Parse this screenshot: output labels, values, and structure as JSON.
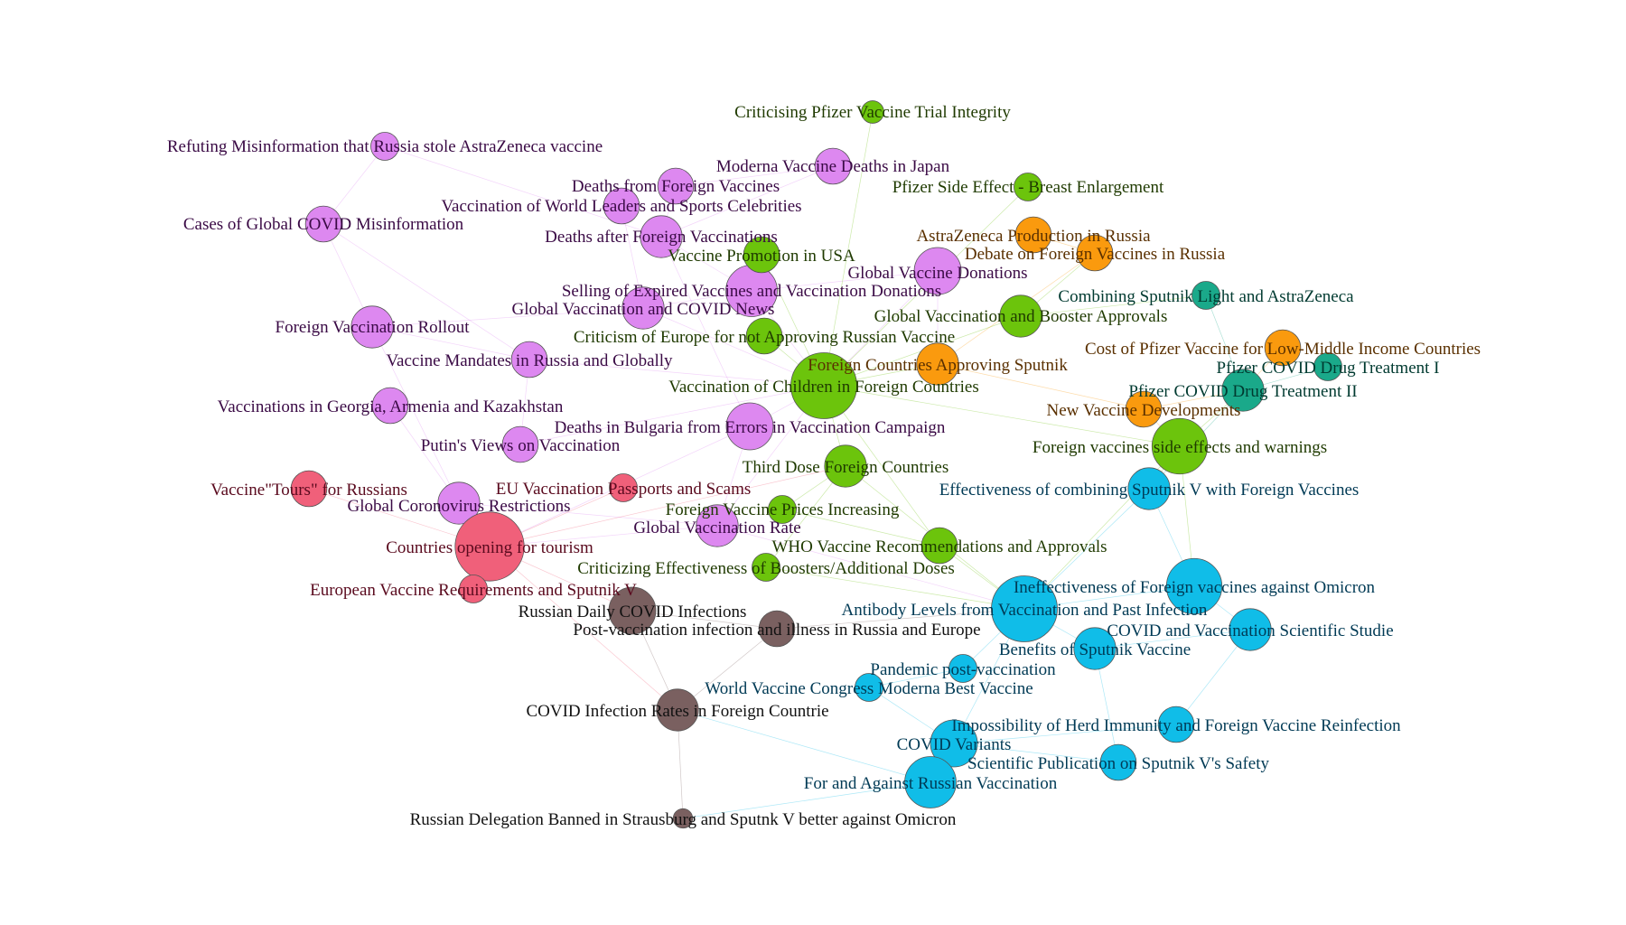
{
  "graph": {
    "clusters": {
      "violet": {
        "fill": "#dd88f0",
        "label_color": "#3a0a45"
      },
      "pink": {
        "fill": "#f0607a",
        "label_color": "#5a0a1e"
      },
      "green": {
        "fill": "#6cc40c",
        "label_color": "#1f3a00"
      },
      "orange": {
        "fill": "#fa9a0e",
        "label_color": "#5a3000"
      },
      "teal": {
        "fill": "#1aa98a",
        "label_color": "#003a30"
      },
      "blue": {
        "fill": "#10bde8",
        "label_color": "#003a55"
      },
      "brown": {
        "fill": "#7a6060",
        "label_color": "#111111"
      }
    },
    "nodes": [
      {
        "id": "n1",
        "label": "Refuting Misinformation that Russia stole AstraZeneca vaccine",
        "cluster": "violet",
        "weight": 1
      },
      {
        "id": "n2",
        "label": "Moderna Vaccine Deaths in Japan",
        "cluster": "violet",
        "weight": 2
      },
      {
        "id": "n3",
        "label": "Deaths from Foreign Vaccines",
        "cluster": "violet",
        "weight": 2
      },
      {
        "id": "n4",
        "label": "Vaccination of World Leaders and Sports Celebrities",
        "cluster": "violet",
        "weight": 2
      },
      {
        "id": "n5",
        "label": "Cases of Global COVID Misinformation",
        "cluster": "violet",
        "weight": 2
      },
      {
        "id": "n6",
        "label": "Deaths after Foreign Vaccinations",
        "cluster": "violet",
        "weight": 3
      },
      {
        "id": "n7",
        "label": "Selling of Expired Vaccines and Vaccination Donations",
        "cluster": "violet",
        "weight": 5
      },
      {
        "id": "n8",
        "label": "Global Vaccination and COVID News",
        "cluster": "violet",
        "weight": 3
      },
      {
        "id": "n9",
        "label": "Global Vaccine Donations",
        "cluster": "violet",
        "weight": 4
      },
      {
        "id": "n10",
        "label": "Foreign Vaccination Rollout",
        "cluster": "violet",
        "weight": 3
      },
      {
        "id": "n11",
        "label": "Vaccine Mandates in Russia and Globally",
        "cluster": "violet",
        "weight": 2
      },
      {
        "id": "n12",
        "label": "Vaccinations in Georgia, Armenia and Kazakhstan",
        "cluster": "violet",
        "weight": 2
      },
      {
        "id": "n13",
        "label": "Deaths in Bulgaria from Errors in Vaccination Campaign",
        "cluster": "violet",
        "weight": 4
      },
      {
        "id": "n14",
        "label": "Putin's Views on Vaccination",
        "cluster": "violet",
        "weight": 2
      },
      {
        "id": "n15",
        "label": "Global Coronovirus Restrictions",
        "cluster": "violet",
        "weight": 3
      },
      {
        "id": "n16",
        "label": "Global Vaccination Rate",
        "cluster": "violet",
        "weight": 3
      },
      {
        "id": "p1",
        "label": "Vaccine\"Tours\" for Russians",
        "cluster": "pink",
        "weight": 2
      },
      {
        "id": "p2",
        "label": "EU Vaccination Passports and Scams",
        "cluster": "pink",
        "weight": 1
      },
      {
        "id": "p3",
        "label": "Countries opening for tourism",
        "cluster": "pink",
        "weight": 10
      },
      {
        "id": "p4",
        "label": "European Vaccine Requirements and Sputnik V",
        "cluster": "pink",
        "weight": 1
      },
      {
        "id": "g1",
        "label": "Criticising Pfizer Vaccine Trial Integrity",
        "cluster": "green",
        "weight": 0.5
      },
      {
        "id": "g2",
        "label": "Pfizer Side Effect - Breast Enlargement",
        "cluster": "green",
        "weight": 1
      },
      {
        "id": "g3",
        "label": "Vaccine Promotion in USA",
        "cluster": "green",
        "weight": 2
      },
      {
        "id": "g4",
        "label": "Global Vaccination and Booster Approvals",
        "cluster": "green",
        "weight": 3
      },
      {
        "id": "g5",
        "label": "Criticism of Europe for not Approving Russian Vaccine",
        "cluster": "green",
        "weight": 2
      },
      {
        "id": "g6",
        "label": "Vaccination of Children in Foreign Countries",
        "cluster": "green",
        "weight": 9
      },
      {
        "id": "g7",
        "label": "Third Dose Foreign Countries",
        "cluster": "green",
        "weight": 3
      },
      {
        "id": "g8",
        "label": "Foreign vaccines side effects and warnings",
        "cluster": "green",
        "weight": 6
      },
      {
        "id": "g9",
        "label": "Foreign Vaccine Prices Increasing",
        "cluster": "green",
        "weight": 1
      },
      {
        "id": "g10",
        "label": "WHO Vaccine Recommendations and Approvals",
        "cluster": "green",
        "weight": 2
      },
      {
        "id": "g11",
        "label": "Criticizing Effectiveness of Boosters/Additional Doses",
        "cluster": "green",
        "weight": 1
      },
      {
        "id": "o1",
        "label": "AstraZeneca Production in Russia",
        "cluster": "orange",
        "weight": 2
      },
      {
        "id": "o2",
        "label": "Debate on Foreign Vaccines in Russia",
        "cluster": "orange",
        "weight": 2
      },
      {
        "id": "o3",
        "label": "Cost of Pfizer Vaccine for Low-Middle Income Countries",
        "cluster": "orange",
        "weight": 2
      },
      {
        "id": "o4",
        "label": "Foreign Countries Approving Sputnik",
        "cluster": "orange",
        "weight": 3
      },
      {
        "id": "o5",
        "label": "New Vaccine Developments",
        "cluster": "orange",
        "weight": 2
      },
      {
        "id": "t1",
        "label": "Combining Sputnik Light and AstraZeneca",
        "cluster": "teal",
        "weight": 1
      },
      {
        "id": "t2",
        "label": "Pfizer COVID Drug Treatment I",
        "cluster": "teal",
        "weight": 1
      },
      {
        "id": "t3",
        "label": "Pfizer COVID Drug Treatment II",
        "cluster": "teal",
        "weight": 3
      },
      {
        "id": "b1",
        "label": "Effectiveness of combining Sputnik V with Foreign Vaccines",
        "cluster": "blue",
        "weight": 3
      },
      {
        "id": "b2",
        "label": "Ineffectiveness of Foreign vaccines against Omicron",
        "cluster": "blue",
        "weight": 6
      },
      {
        "id": "b3",
        "label": "Antibody Levels from Vaccination and Past Infection",
        "cluster": "blue",
        "weight": 9
      },
      {
        "id": "b4",
        "label": "COVID and Vaccination Scientific Studie",
        "cluster": "blue",
        "weight": 3
      },
      {
        "id": "b5",
        "label": "Benefits of Sputnik Vaccine",
        "cluster": "blue",
        "weight": 3
      },
      {
        "id": "b6",
        "label": "Pandemic post-vaccination",
        "cluster": "blue",
        "weight": 1
      },
      {
        "id": "b7",
        "label": "World Vaccine Congress Moderna Best Vaccine",
        "cluster": "blue",
        "weight": 1
      },
      {
        "id": "b8",
        "label": "Impossibility of Herd Immunity and Foreign Vaccine Reinfection",
        "cluster": "blue",
        "weight": 2
      },
      {
        "id": "b9",
        "label": "COVID Variants",
        "cluster": "blue",
        "weight": 4
      },
      {
        "id": "b10",
        "label": "Scientific Publication on Sputnik V's Safety",
        "cluster": "blue",
        "weight": 2
      },
      {
        "id": "b11",
        "label": "For and Against Russian Vaccination",
        "cluster": "blue",
        "weight": 5
      },
      {
        "id": "r1",
        "label": "Russian Daily COVID Infections",
        "cluster": "brown",
        "weight": 4
      },
      {
        "id": "r2",
        "label": "Post-vaccination infection and illness in Russia and Europe",
        "cluster": "brown",
        "weight": 2
      },
      {
        "id": "r3",
        "label": "COVID Infection Rates in Foreign Countrie",
        "cluster": "brown",
        "weight": 3
      },
      {
        "id": "r4",
        "label": "Russian Delegation Banned in Strausburg and Sputnk V better against Omicron",
        "cluster": "brown",
        "weight": 0.3
      }
    ],
    "edges": [
      [
        "n1",
        "n5"
      ],
      [
        "n1",
        "n6"
      ],
      [
        "n2",
        "n3"
      ],
      [
        "n2",
        "n6"
      ],
      [
        "n3",
        "n6"
      ],
      [
        "n4",
        "n8"
      ],
      [
        "n5",
        "n10"
      ],
      [
        "n5",
        "n11"
      ],
      [
        "n6",
        "n7"
      ],
      [
        "n6",
        "n13"
      ],
      [
        "n7",
        "n9"
      ],
      [
        "n7",
        "n8"
      ],
      [
        "n7",
        "g6"
      ],
      [
        "n8",
        "n10"
      ],
      [
        "n8",
        "g6"
      ],
      [
        "n9",
        "g6"
      ],
      [
        "n9",
        "o4"
      ],
      [
        "n10",
        "n11"
      ],
      [
        "n10",
        "n15"
      ],
      [
        "n11",
        "n14"
      ],
      [
        "n11",
        "g6"
      ],
      [
        "n12",
        "n15"
      ],
      [
        "n13",
        "g6"
      ],
      [
        "n13",
        "n16"
      ],
      [
        "n14",
        "g6"
      ],
      [
        "n15",
        "p3"
      ],
      [
        "n15",
        "n16"
      ],
      [
        "n16",
        "g6"
      ],
      [
        "n16",
        "p3"
      ],
      [
        "n16",
        "b3"
      ],
      [
        "p1",
        "p3"
      ],
      [
        "p2",
        "p3"
      ],
      [
        "p4",
        "p3"
      ],
      [
        "p3",
        "r1"
      ],
      [
        "p3",
        "r3"
      ],
      [
        "p3",
        "g7"
      ],
      [
        "g1",
        "g6"
      ],
      [
        "g2",
        "g6"
      ],
      [
        "g3",
        "g6"
      ],
      [
        "g4",
        "g6"
      ],
      [
        "g5",
        "g6"
      ],
      [
        "g6",
        "g7"
      ],
      [
        "g6",
        "g8"
      ],
      [
        "g6",
        "o4"
      ],
      [
        "g6",
        "g10"
      ],
      [
        "g7",
        "g9"
      ],
      [
        "g7",
        "g11"
      ],
      [
        "g7",
        "b3"
      ],
      [
        "g8",
        "b1"
      ],
      [
        "g8",
        "b2"
      ],
      [
        "g8",
        "t3"
      ],
      [
        "g10",
        "b3"
      ],
      [
        "g4",
        "o2"
      ],
      [
        "g4",
        "t1"
      ],
      [
        "o1",
        "o2"
      ],
      [
        "o2",
        "o4"
      ],
      [
        "o3",
        "t3"
      ],
      [
        "o4",
        "o5"
      ],
      [
        "o5",
        "g8"
      ],
      [
        "o5",
        "t3"
      ],
      [
        "t1",
        "t3"
      ],
      [
        "t2",
        "t3"
      ],
      [
        "t3",
        "b1"
      ],
      [
        "b1",
        "b2"
      ],
      [
        "b1",
        "b3"
      ],
      [
        "b2",
        "b3"
      ],
      [
        "b2",
        "b4"
      ],
      [
        "b3",
        "b5"
      ],
      [
        "b3",
        "b6"
      ],
      [
        "b3",
        "b9"
      ],
      [
        "b4",
        "b5"
      ],
      [
        "b4",
        "b8"
      ],
      [
        "b5",
        "b10"
      ],
      [
        "b6",
        "b7"
      ],
      [
        "b7",
        "b9"
      ],
      [
        "b8",
        "b9"
      ],
      [
        "b9",
        "b10"
      ],
      [
        "b9",
        "b11"
      ],
      [
        "b11",
        "r3"
      ],
      [
        "b11",
        "r4"
      ],
      [
        "r1",
        "r2"
      ],
      [
        "r1",
        "r3"
      ],
      [
        "r2",
        "r3"
      ],
      [
        "r2",
        "b3"
      ],
      [
        "r3",
        "r4"
      ],
      [
        "g11",
        "b3"
      ],
      [
        "g9",
        "g10"
      ],
      [
        "n13",
        "p3"
      ],
      [
        "g8",
        "b3"
      ]
    ]
  }
}
